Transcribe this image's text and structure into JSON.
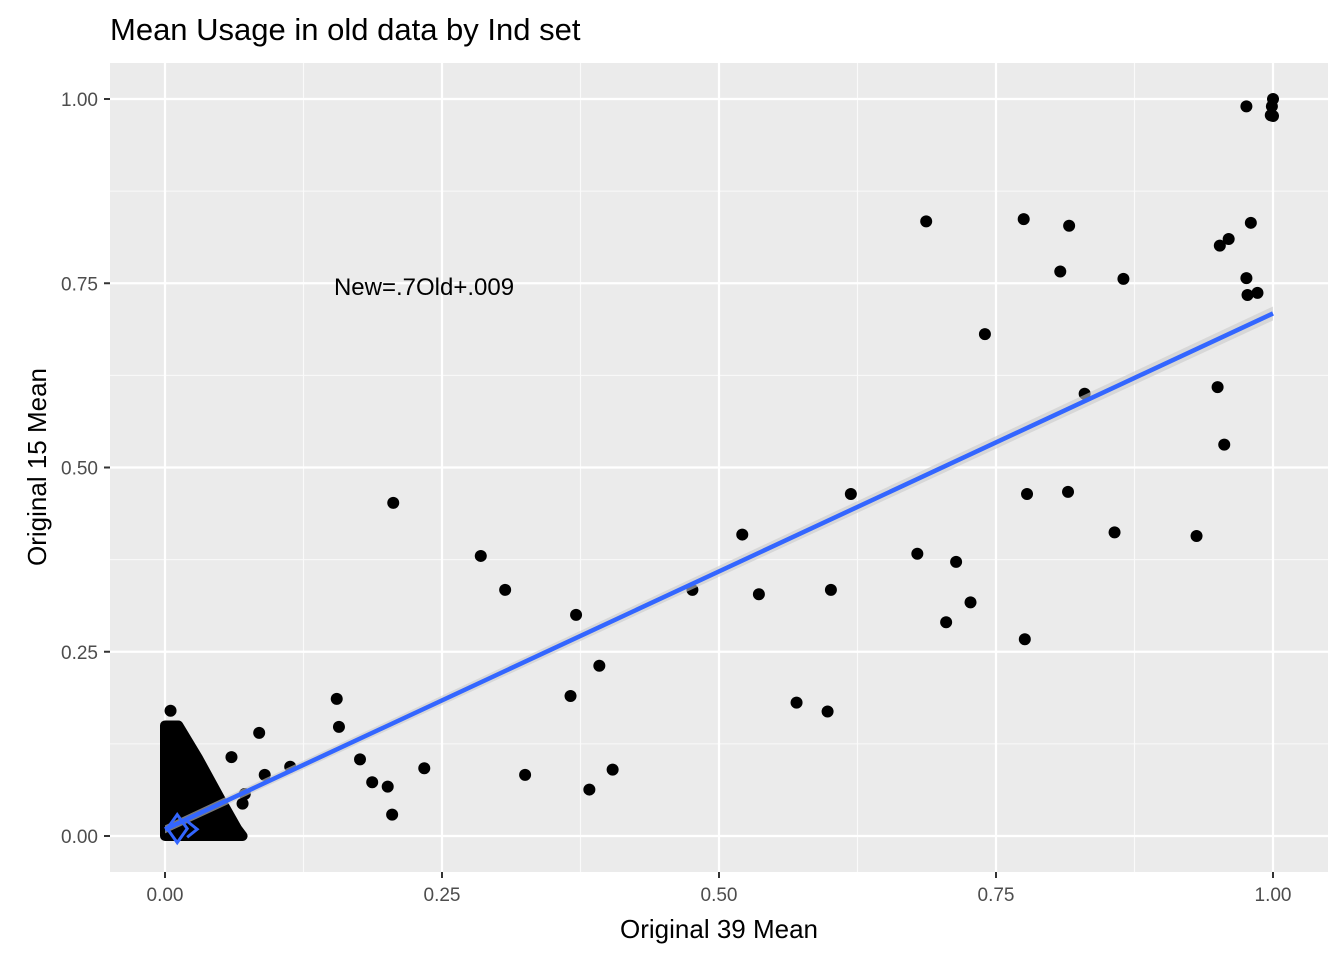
{
  "chart_data": {
    "type": "scatter",
    "title": "Mean Usage in old data by Ind set",
    "xlabel": "Original 39 Mean",
    "ylabel": "Original 15 Mean",
    "xlim": [
      -0.05,
      1.05
    ],
    "ylim": [
      -0.05,
      1.05
    ],
    "x_ticks": [
      0,
      0.25,
      0.5,
      0.75,
      1
    ],
    "x_tick_labels": [
      "0.00",
      "0.25",
      "0.50",
      "0.75",
      "1.00"
    ],
    "y_ticks": [
      0,
      0.25,
      0.5,
      0.75,
      1
    ],
    "y_tick_labels": [
      "0.00",
      "0.25",
      "0.50",
      "0.75",
      "1.00"
    ],
    "grid": true,
    "background": "#ebebeb",
    "point_color": "#000000",
    "fit_color": "#3366ff",
    "annotation": {
      "text": "New=.7Old+.009",
      "x": 0.25,
      "y": 0.745
    },
    "fit_line": {
      "slope": 0.7,
      "intercept": 0.009,
      "x_range": [
        0,
        1
      ]
    },
    "dense_cluster": {
      "x_range": [
        0,
        0.07
      ],
      "y_range": [
        0,
        0.17
      ],
      "note": "many overlapping points near origin"
    },
    "points": [
      [
        0.005,
        0.17
      ],
      [
        0.06,
        0.107
      ],
      [
        0.085,
        0.14
      ],
      [
        0.09,
        0.083
      ],
      [
        0.113,
        0.094
      ],
      [
        0.07,
        0.044
      ],
      [
        0.072,
        0.057
      ],
      [
        0.155,
        0.186
      ],
      [
        0.157,
        0.148
      ],
      [
        0.176,
        0.104
      ],
      [
        0.187,
        0.073
      ],
      [
        0.201,
        0.067
      ],
      [
        0.205,
        0.029
      ],
      [
        0.206,
        0.452
      ],
      [
        0.234,
        0.092
      ],
      [
        0.285,
        0.38
      ],
      [
        0.307,
        0.334
      ],
      [
        0.325,
        0.083
      ],
      [
        0.366,
        0.19
      ],
      [
        0.371,
        0.3
      ],
      [
        0.383,
        0.063
      ],
      [
        0.392,
        0.231
      ],
      [
        0.404,
        0.09
      ],
      [
        0.476,
        0.334
      ],
      [
        0.521,
        0.409
      ],
      [
        0.536,
        0.328
      ],
      [
        0.57,
        0.181
      ],
      [
        0.598,
        0.169
      ],
      [
        0.601,
        0.334
      ],
      [
        0.619,
        0.464
      ],
      [
        0.679,
        0.383
      ],
      [
        0.687,
        0.834
      ],
      [
        0.705,
        0.29
      ],
      [
        0.714,
        0.372
      ],
      [
        0.727,
        0.317
      ],
      [
        0.74,
        0.681
      ],
      [
        0.775,
        0.837
      ],
      [
        0.776,
        0.267
      ],
      [
        0.778,
        0.464
      ],
      [
        0.808,
        0.766
      ],
      [
        0.815,
        0.467
      ],
      [
        0.816,
        0.828
      ],
      [
        0.83,
        0.6
      ],
      [
        0.857,
        0.412
      ],
      [
        0.865,
        0.756
      ],
      [
        0.931,
        0.407
      ],
      [
        0.95,
        0.609
      ],
      [
        0.952,
        0.801
      ],
      [
        0.956,
        0.531
      ],
      [
        0.96,
        0.81
      ],
      [
        0.976,
        0.99
      ],
      [
        0.976,
        0.757
      ],
      [
        0.977,
        0.734
      ],
      [
        0.98,
        0.832
      ],
      [
        0.986,
        0.737
      ],
      [
        0.998,
        0.978
      ],
      [
        0.999,
        0.99
      ],
      [
        1.0,
        1.0
      ],
      [
        1.0,
        0.977
      ]
    ]
  }
}
